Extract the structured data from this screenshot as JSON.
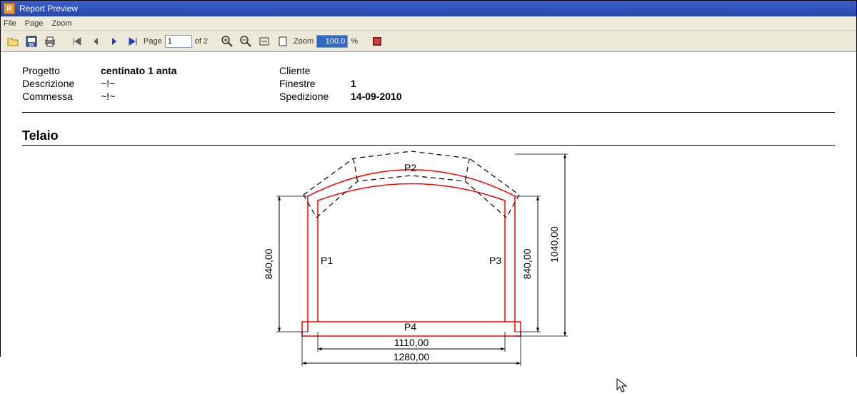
{
  "window": {
    "title": "Report Preview"
  },
  "menus": {
    "file": "File",
    "page": "Page",
    "zoom": "Zoom"
  },
  "toolbar": {
    "page_label": "Page",
    "page_value": "1",
    "page_total": "of 2",
    "zoom_label": "Zoom",
    "zoom_value": "100.0",
    "zoom_pct": "%"
  },
  "header": {
    "progetto_lbl": "Progetto",
    "progetto_val": "centinato 1 anta",
    "descrizione_lbl": "Descrizione",
    "descrizione_val": "~!~",
    "commessa_lbl": "Commessa",
    "commessa_val": "~!~",
    "cliente_lbl": "Cliente",
    "cliente_val": "",
    "finestre_lbl": "Finestre",
    "finestre_val": "1",
    "spedizione_lbl": "Spedizione",
    "spedizione_val": "14-09-2010"
  },
  "section": {
    "title": "Telaio"
  },
  "drawing": {
    "parts": {
      "p1": "P1",
      "p2": "P2",
      "p3": "P3",
      "p4": "P4"
    },
    "dims": {
      "height_inner": "840,00",
      "height_outer": "1040,00",
      "height_right_inner": "840,00",
      "width_inner": "1110,00",
      "width_outer": "1280,00"
    },
    "colors": {
      "frame": "#ff0000",
      "dashed": "#000000",
      "dim": "#000000",
      "text": "#000000"
    },
    "geometry": {
      "outer_width": 290,
      "outer_height": 240,
      "post_thickness": 14,
      "arch_rise": 55
    }
  }
}
